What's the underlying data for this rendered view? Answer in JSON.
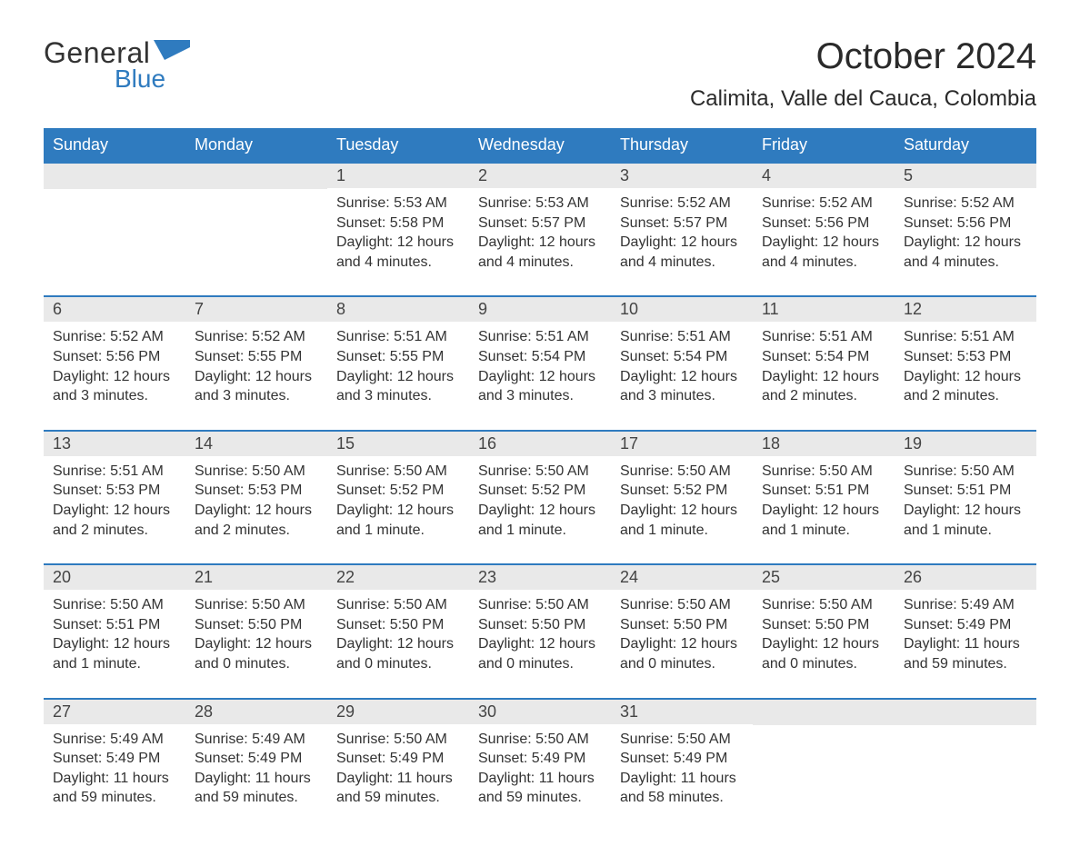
{
  "brand": {
    "line1": "General",
    "line2": "Blue",
    "color_text": "#333333",
    "color_blue": "#2f7bbf"
  },
  "header": {
    "title": "October 2024",
    "location": "Calimita, Valle del Cauca, Colombia"
  },
  "style": {
    "header_bg": "#2f7bbf",
    "header_fg": "#ffffff",
    "daynum_bg": "#e9e9e9",
    "border_color": "#2f7bbf",
    "body_font_size": 16,
    "title_font_size": 40,
    "location_font_size": 24
  },
  "dayNames": [
    "Sunday",
    "Monday",
    "Tuesday",
    "Wednesday",
    "Thursday",
    "Friday",
    "Saturday"
  ],
  "weeks": [
    [
      {
        "blank": true
      },
      {
        "blank": true
      },
      {
        "day": "1",
        "sunrise": "Sunrise: 5:53 AM",
        "sunset": "Sunset: 5:58 PM",
        "daylight": "Daylight: 12 hours and 4 minutes."
      },
      {
        "day": "2",
        "sunrise": "Sunrise: 5:53 AM",
        "sunset": "Sunset: 5:57 PM",
        "daylight": "Daylight: 12 hours and 4 minutes."
      },
      {
        "day": "3",
        "sunrise": "Sunrise: 5:52 AM",
        "sunset": "Sunset: 5:57 PM",
        "daylight": "Daylight: 12 hours and 4 minutes."
      },
      {
        "day": "4",
        "sunrise": "Sunrise: 5:52 AM",
        "sunset": "Sunset: 5:56 PM",
        "daylight": "Daylight: 12 hours and 4 minutes."
      },
      {
        "day": "5",
        "sunrise": "Sunrise: 5:52 AM",
        "sunset": "Sunset: 5:56 PM",
        "daylight": "Daylight: 12 hours and 4 minutes."
      }
    ],
    [
      {
        "day": "6",
        "sunrise": "Sunrise: 5:52 AM",
        "sunset": "Sunset: 5:56 PM",
        "daylight": "Daylight: 12 hours and 3 minutes."
      },
      {
        "day": "7",
        "sunrise": "Sunrise: 5:52 AM",
        "sunset": "Sunset: 5:55 PM",
        "daylight": "Daylight: 12 hours and 3 minutes."
      },
      {
        "day": "8",
        "sunrise": "Sunrise: 5:51 AM",
        "sunset": "Sunset: 5:55 PM",
        "daylight": "Daylight: 12 hours and 3 minutes."
      },
      {
        "day": "9",
        "sunrise": "Sunrise: 5:51 AM",
        "sunset": "Sunset: 5:54 PM",
        "daylight": "Daylight: 12 hours and 3 minutes."
      },
      {
        "day": "10",
        "sunrise": "Sunrise: 5:51 AM",
        "sunset": "Sunset: 5:54 PM",
        "daylight": "Daylight: 12 hours and 3 minutes."
      },
      {
        "day": "11",
        "sunrise": "Sunrise: 5:51 AM",
        "sunset": "Sunset: 5:54 PM",
        "daylight": "Daylight: 12 hours and 2 minutes."
      },
      {
        "day": "12",
        "sunrise": "Sunrise: 5:51 AM",
        "sunset": "Sunset: 5:53 PM",
        "daylight": "Daylight: 12 hours and 2 minutes."
      }
    ],
    [
      {
        "day": "13",
        "sunrise": "Sunrise: 5:51 AM",
        "sunset": "Sunset: 5:53 PM",
        "daylight": "Daylight: 12 hours and 2 minutes."
      },
      {
        "day": "14",
        "sunrise": "Sunrise: 5:50 AM",
        "sunset": "Sunset: 5:53 PM",
        "daylight": "Daylight: 12 hours and 2 minutes."
      },
      {
        "day": "15",
        "sunrise": "Sunrise: 5:50 AM",
        "sunset": "Sunset: 5:52 PM",
        "daylight": "Daylight: 12 hours and 1 minute."
      },
      {
        "day": "16",
        "sunrise": "Sunrise: 5:50 AM",
        "sunset": "Sunset: 5:52 PM",
        "daylight": "Daylight: 12 hours and 1 minute."
      },
      {
        "day": "17",
        "sunrise": "Sunrise: 5:50 AM",
        "sunset": "Sunset: 5:52 PM",
        "daylight": "Daylight: 12 hours and 1 minute."
      },
      {
        "day": "18",
        "sunrise": "Sunrise: 5:50 AM",
        "sunset": "Sunset: 5:51 PM",
        "daylight": "Daylight: 12 hours and 1 minute."
      },
      {
        "day": "19",
        "sunrise": "Sunrise: 5:50 AM",
        "sunset": "Sunset: 5:51 PM",
        "daylight": "Daylight: 12 hours and 1 minute."
      }
    ],
    [
      {
        "day": "20",
        "sunrise": "Sunrise: 5:50 AM",
        "sunset": "Sunset: 5:51 PM",
        "daylight": "Daylight: 12 hours and 1 minute."
      },
      {
        "day": "21",
        "sunrise": "Sunrise: 5:50 AM",
        "sunset": "Sunset: 5:50 PM",
        "daylight": "Daylight: 12 hours and 0 minutes."
      },
      {
        "day": "22",
        "sunrise": "Sunrise: 5:50 AM",
        "sunset": "Sunset: 5:50 PM",
        "daylight": "Daylight: 12 hours and 0 minutes."
      },
      {
        "day": "23",
        "sunrise": "Sunrise: 5:50 AM",
        "sunset": "Sunset: 5:50 PM",
        "daylight": "Daylight: 12 hours and 0 minutes."
      },
      {
        "day": "24",
        "sunrise": "Sunrise: 5:50 AM",
        "sunset": "Sunset: 5:50 PM",
        "daylight": "Daylight: 12 hours and 0 minutes."
      },
      {
        "day": "25",
        "sunrise": "Sunrise: 5:50 AM",
        "sunset": "Sunset: 5:50 PM",
        "daylight": "Daylight: 12 hours and 0 minutes."
      },
      {
        "day": "26",
        "sunrise": "Sunrise: 5:49 AM",
        "sunset": "Sunset: 5:49 PM",
        "daylight": "Daylight: 11 hours and 59 minutes."
      }
    ],
    [
      {
        "day": "27",
        "sunrise": "Sunrise: 5:49 AM",
        "sunset": "Sunset: 5:49 PM",
        "daylight": "Daylight: 11 hours and 59 minutes."
      },
      {
        "day": "28",
        "sunrise": "Sunrise: 5:49 AM",
        "sunset": "Sunset: 5:49 PM",
        "daylight": "Daylight: 11 hours and 59 minutes."
      },
      {
        "day": "29",
        "sunrise": "Sunrise: 5:50 AM",
        "sunset": "Sunset: 5:49 PM",
        "daylight": "Daylight: 11 hours and 59 minutes."
      },
      {
        "day": "30",
        "sunrise": "Sunrise: 5:50 AM",
        "sunset": "Sunset: 5:49 PM",
        "daylight": "Daylight: 11 hours and 59 minutes."
      },
      {
        "day": "31",
        "sunrise": "Sunrise: 5:50 AM",
        "sunset": "Sunset: 5:49 PM",
        "daylight": "Daylight: 11 hours and 58 minutes."
      },
      {
        "blank": true
      },
      {
        "blank": true
      }
    ]
  ]
}
